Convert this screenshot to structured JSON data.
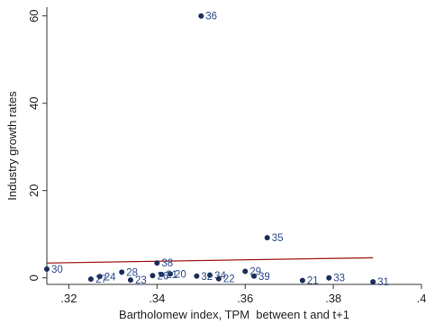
{
  "chart_data": {
    "type": "scatter",
    "title": "",
    "xlabel": "Bartholomew index, TPM  between t and t+1",
    "ylabel": "Industry growth rates",
    "xlim": [
      0.315,
      0.4
    ],
    "ylim": [
      -1.5,
      62
    ],
    "x_ticks": [
      0.32,
      0.34,
      0.36,
      0.38,
      0.4
    ],
    "x_tick_labels": [
      ".32",
      ".34",
      ".36",
      ".38",
      ".4"
    ],
    "y_ticks": [
      0,
      20,
      40,
      60
    ],
    "y_tick_labels": [
      "0",
      "20",
      "40",
      "60"
    ],
    "grid": false,
    "marker_color": "#1a2d5a",
    "label_color": "#2a4a8a",
    "points": [
      {
        "label": "36",
        "x": 0.35,
        "y": 60.0
      },
      {
        "label": "35",
        "x": 0.365,
        "y": 9.2
      },
      {
        "label": "38",
        "x": 0.34,
        "y": 3.4
      },
      {
        "label": "30",
        "x": 0.315,
        "y": 2.0
      },
      {
        "label": "29",
        "x": 0.36,
        "y": 1.5
      },
      {
        "label": "28",
        "x": 0.332,
        "y": 1.3
      },
      {
        "label": "20",
        "x": 0.343,
        "y": 0.9
      },
      {
        "label": "21",
        "x": 0.341,
        "y": 0.8
      },
      {
        "label": "34",
        "x": 0.352,
        "y": 0.6
      },
      {
        "label": "26",
        "x": 0.339,
        "y": 0.5
      },
      {
        "label": "32",
        "x": 0.349,
        "y": 0.4
      },
      {
        "label": "39",
        "x": 0.362,
        "y": 0.4
      },
      {
        "label": "24",
        "x": 0.327,
        "y": 0.3
      },
      {
        "label": "33",
        "x": 0.379,
        "y": 0.0
      },
      {
        "label": "22",
        "x": 0.354,
        "y": -0.2
      },
      {
        "label": "27",
        "x": 0.325,
        "y": -0.3
      },
      {
        "label": "23",
        "x": 0.334,
        "y": -0.5
      },
      {
        "label": "21",
        "x": 0.373,
        "y": -0.6
      },
      {
        "label": "31",
        "x": 0.389,
        "y": -0.9
      }
    ],
    "fit_line": {
      "x": [
        0.315,
        0.389
      ],
      "y": [
        3.4,
        4.6
      ],
      "color": "#a42020"
    }
  }
}
